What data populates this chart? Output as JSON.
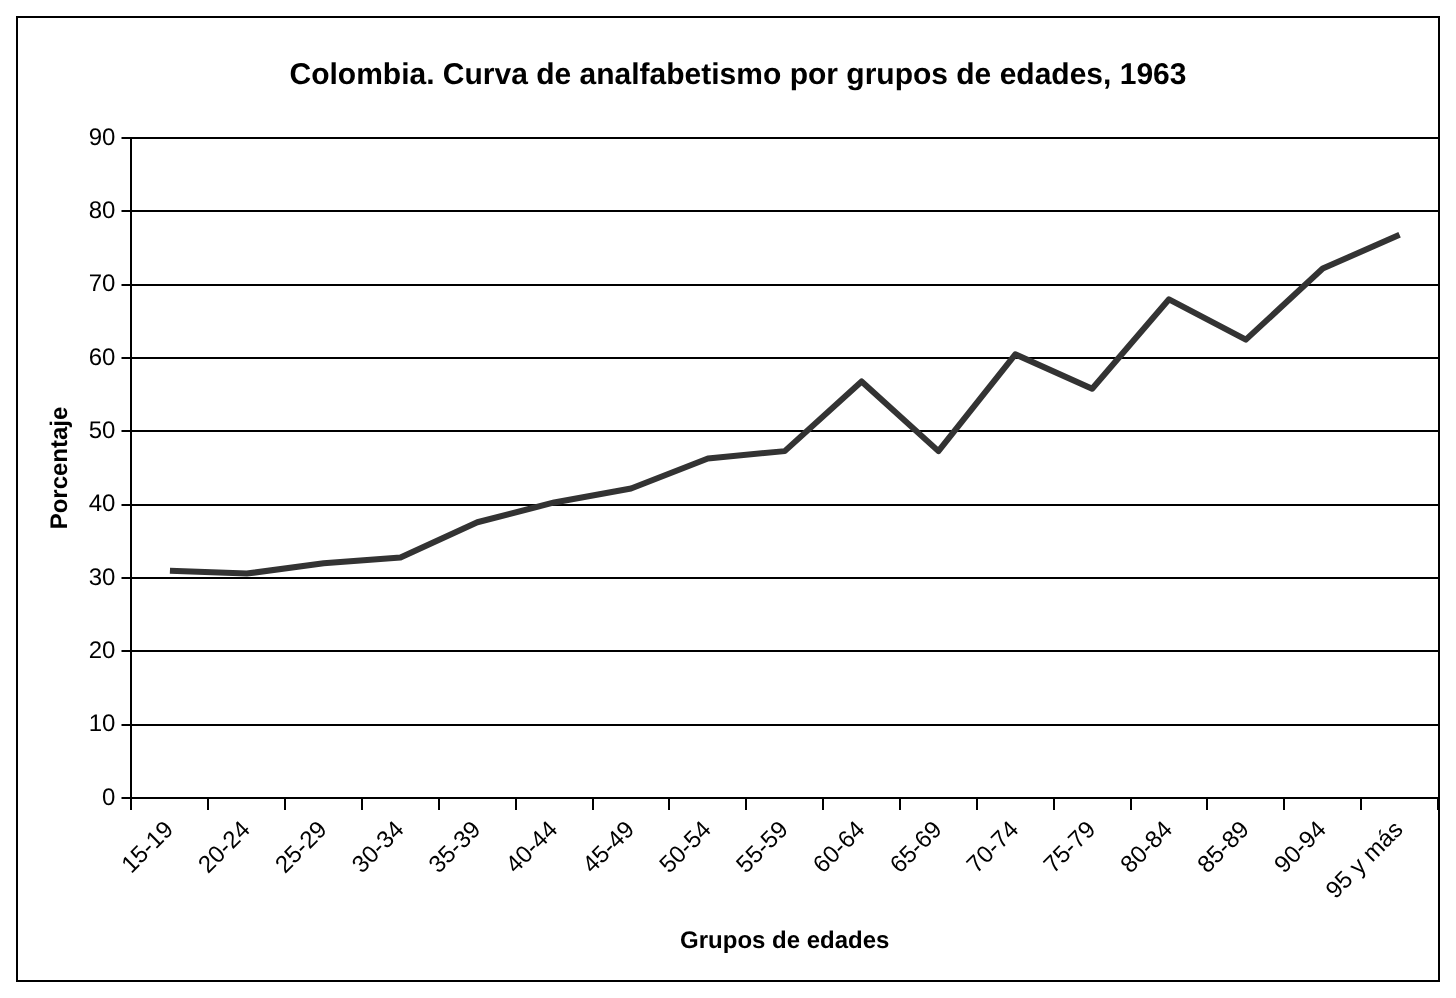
{
  "chart_data": {
    "type": "line",
    "title": "Colombia. Curva de analfabetismo por grupos de edades, 1963",
    "xlabel": "Grupos de edades",
    "ylabel": "Porcentaje",
    "categories": [
      "15-19",
      "20-24",
      "25-29",
      "30-34",
      "35-39",
      "40-44",
      "45-49",
      "50-54",
      "55-59",
      "60-64",
      "65-69",
      "70-74",
      "75-79",
      "80-84",
      "85-89",
      "90-94",
      "95 y más"
    ],
    "series": [
      {
        "color": "#333333",
        "values": [
          31,
          30.6,
          32,
          32.8,
          37.6,
          40.3,
          42.2,
          46.3,
          47.3,
          56.8,
          47.3,
          60.5,
          55.8,
          68,
          62.5,
          72.2,
          76.8
        ]
      }
    ],
    "ylim": [
      0,
      90
    ],
    "yticks": [
      0,
      10,
      20,
      30,
      40,
      50,
      60,
      70,
      80,
      90
    ],
    "grid": "y",
    "legend": false,
    "marker": "none",
    "line_style": "solid"
  }
}
